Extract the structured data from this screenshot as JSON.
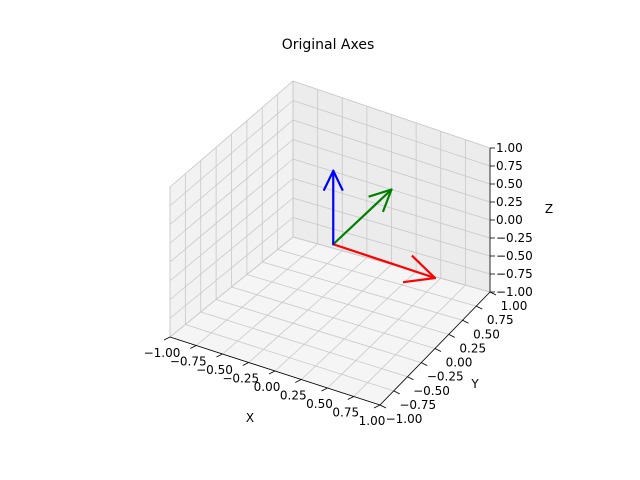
{
  "chart_data": {
    "type": "quiver3d",
    "title": "Original Axes",
    "xlabel": "X",
    "ylabel": "Y",
    "zlabel": "Z",
    "xlim": [
      -1.0,
      1.0
    ],
    "ylim": [
      -1.0,
      1.0
    ],
    "zlim": [
      -1.0,
      1.0
    ],
    "xticks": [
      "−1.00",
      "−0.75",
      "−0.50",
      "−0.25",
      "0.00",
      "0.25",
      "0.50",
      "0.75",
      "1.00"
    ],
    "yticks": [
      "−1.00",
      "−0.75",
      "−0.50",
      "−0.25",
      "0.00",
      "0.25",
      "0.50",
      "0.75",
      "1.00"
    ],
    "zticks": [
      "−1.00",
      "−0.75",
      "−0.50",
      "−0.25",
      "0.00",
      "0.25",
      "0.50",
      "0.75",
      "1.00"
    ],
    "grid": true,
    "origin": [
      0,
      0,
      0
    ],
    "vectors": [
      {
        "components": [
          1,
          0,
          0
        ],
        "color": "#ff0000"
      },
      {
        "components": [
          0,
          1,
          0
        ],
        "color": "#008000"
      },
      {
        "components": [
          0,
          0,
          1
        ],
        "color": "#0000ff"
      }
    ]
  }
}
